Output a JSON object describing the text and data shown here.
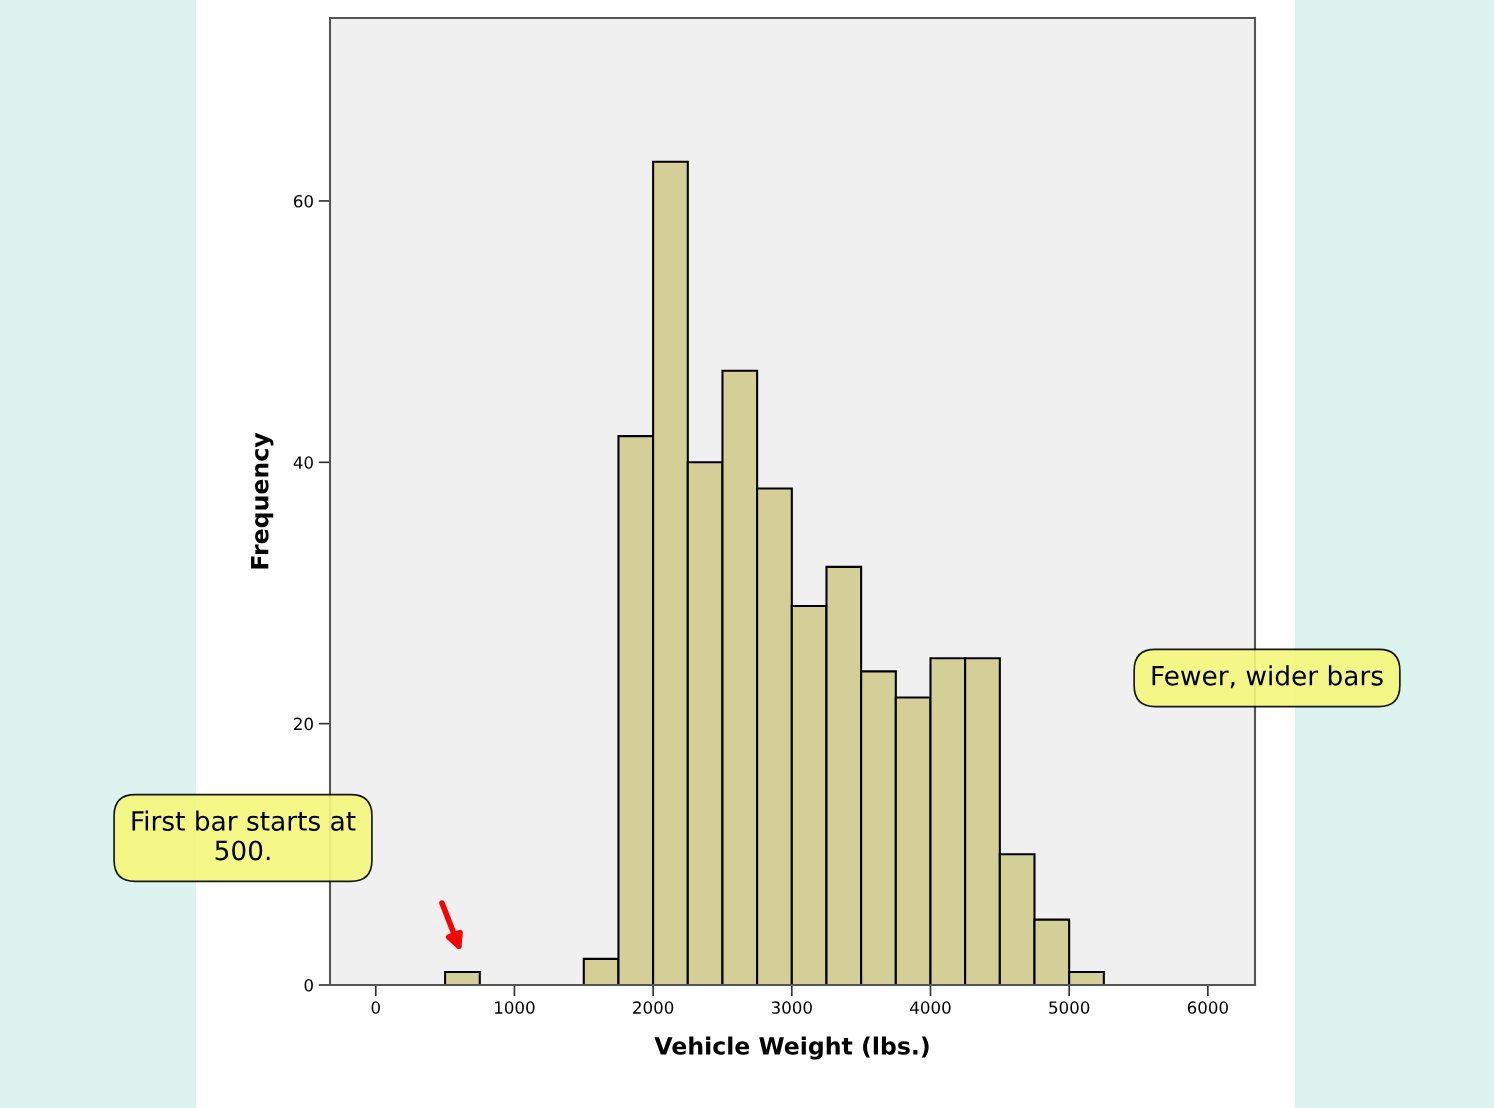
{
  "chart_data": {
    "type": "histogram",
    "xlabel": "Vehicle Weight (lbs.)",
    "ylabel": "Frequency",
    "bins": [
      500,
      750,
      1000,
      1250,
      1500,
      1750,
      2000,
      2250,
      2500,
      2750,
      3000,
      3250,
      3500,
      3750,
      4000,
      4250,
      4500,
      4750,
      5000,
      5250
    ],
    "values": [
      1,
      0,
      0,
      0,
      2,
      42,
      63,
      40,
      47,
      38,
      29,
      32,
      24,
      22,
      25,
      25,
      10,
      5,
      1
    ],
    "color": "#d4cf96",
    "xlim": [
      -330,
      6340
    ],
    "xticks": [
      0,
      1000,
      2000,
      3000,
      4000,
      5000,
      6000
    ],
    "ylim": [
      0,
      74
    ],
    "yticks": [
      0,
      20,
      40,
      60
    ],
    "grid": false,
    "annotations": [
      "First bar starts at\n500.",
      "Fewer, wider bars"
    ]
  }
}
